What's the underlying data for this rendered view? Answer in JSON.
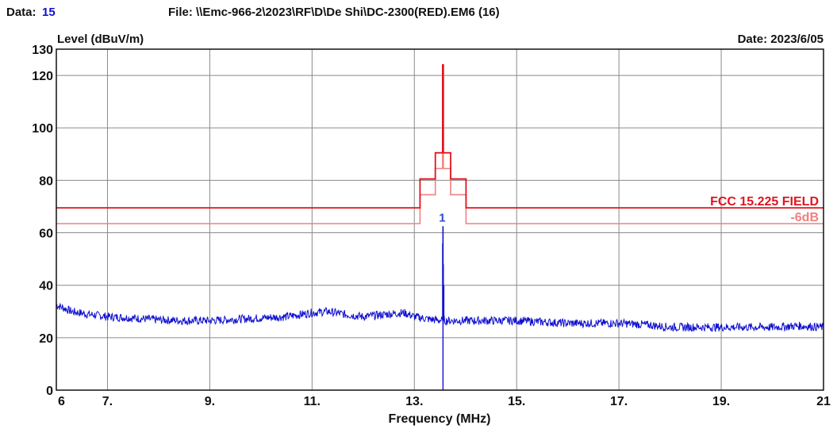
{
  "header": {
    "data_label": "Data:",
    "data_value": "15",
    "file_text": "File: \\\\Emc-966-2\\2023\\RF\\D\\De Shi\\DC-2300(RED).EM6  (16)",
    "date_text": "Date: 2023/6/05"
  },
  "colors": {
    "limit": "#e0141e",
    "limit_margin": "#f08080",
    "trace": "#1010d0",
    "marker_text": "#2a4fd0",
    "data_value": "#1010d0",
    "grid": "#8a8a8a"
  },
  "chart_data": {
    "type": "line",
    "ylabel": "Level (dBuV/m)",
    "xlabel": "Frequency (MHz)",
    "xlim": [
      6,
      21
    ],
    "ylim": [
      0,
      130
    ],
    "x_ticks": [
      {
        "v": 6,
        "label": "6"
      },
      {
        "v": 7,
        "label": "7."
      },
      {
        "v": 9,
        "label": "9."
      },
      {
        "v": 11,
        "label": "11."
      },
      {
        "v": 13,
        "label": "13."
      },
      {
        "v": 15,
        "label": "15."
      },
      {
        "v": 17,
        "label": "17."
      },
      {
        "v": 19,
        "label": "19."
      },
      {
        "v": 21,
        "label": "21"
      }
    ],
    "y_ticks": [
      {
        "v": 0,
        "label": "0"
      },
      {
        "v": 20,
        "label": "20"
      },
      {
        "v": 40,
        "label": "40"
      },
      {
        "v": 60,
        "label": "60"
      },
      {
        "v": 80,
        "label": "80"
      },
      {
        "v": 100,
        "label": "100"
      },
      {
        "v": 120,
        "label": "120"
      },
      {
        "v": 130,
        "label": "130"
      }
    ],
    "grid": true,
    "series": [
      {
        "name": "FCC 15.225 FIELD",
        "color": "#e0141e",
        "points": [
          [
            6,
            69.5
          ],
          [
            13.11,
            69.5
          ],
          [
            13.11,
            80.5
          ],
          [
            13.41,
            80.5
          ],
          [
            13.41,
            90.5
          ],
          [
            13.553,
            90.5
          ],
          [
            13.553,
            124
          ],
          [
            13.567,
            124
          ],
          [
            13.567,
            90.5
          ],
          [
            13.71,
            90.5
          ],
          [
            13.71,
            80.5
          ],
          [
            14.01,
            80.5
          ],
          [
            14.01,
            69.5
          ],
          [
            21,
            69.5
          ]
        ]
      },
      {
        "name": "-6dB",
        "color": "#f08080",
        "points": [
          [
            6,
            63.5
          ],
          [
            13.11,
            63.5
          ],
          [
            13.11,
            74.5
          ],
          [
            13.41,
            74.5
          ],
          [
            13.41,
            84.5
          ],
          [
            13.553,
            84.5
          ],
          [
            13.553,
            118
          ],
          [
            13.567,
            118
          ],
          [
            13.567,
            84.5
          ],
          [
            13.71,
            84.5
          ],
          [
            13.71,
            74.5
          ],
          [
            14.01,
            74.5
          ],
          [
            14.01,
            63.5
          ],
          [
            21,
            63.5
          ]
        ]
      },
      {
        "color": "#1010d0",
        "noise": 1.6,
        "points": [
          [
            6.0,
            32.5
          ],
          [
            6.3,
            30
          ],
          [
            6.6,
            29
          ],
          [
            7.0,
            28
          ],
          [
            7.5,
            27.5
          ],
          [
            8.0,
            26.8
          ],
          [
            8.5,
            26.5
          ],
          [
            9.0,
            26.5
          ],
          [
            9.5,
            27
          ],
          [
            10.0,
            27.5
          ],
          [
            10.5,
            28
          ],
          [
            11.0,
            29.5
          ],
          [
            11.3,
            30
          ],
          [
            11.6,
            29
          ],
          [
            12.0,
            28
          ],
          [
            12.5,
            29
          ],
          [
            12.8,
            29.5
          ],
          [
            13.0,
            28
          ],
          [
            13.3,
            27
          ],
          [
            13.55,
            26.5
          ],
          [
            14.0,
            26.5
          ],
          [
            14.5,
            26.5
          ],
          [
            15.0,
            26.5
          ],
          [
            15.5,
            26
          ],
          [
            16.0,
            25.5
          ],
          [
            16.5,
            25.5
          ],
          [
            17.0,
            25.5
          ],
          [
            17.5,
            25
          ],
          [
            18.0,
            24
          ],
          [
            18.5,
            24
          ],
          [
            19.0,
            24
          ],
          [
            19.5,
            24
          ],
          [
            20.0,
            24
          ],
          [
            20.5,
            24.5
          ],
          [
            21.0,
            24
          ]
        ]
      },
      {
        "color": "#1010d0",
        "spikes": [
          [
            13.56,
            62.5
          ],
          [
            13.555,
            56
          ],
          [
            13.565,
            48
          ],
          [
            13.575,
            40
          ]
        ],
        "dip": [
          13.56,
          0
        ]
      }
    ],
    "limit_labels": [
      {
        "text": "FCC 15.225 FIELD",
        "y": 69.5
      },
      {
        "text": "-6dB",
        "y": 63.5
      }
    ],
    "markers": [
      {
        "label": "1",
        "x": 13.56,
        "y": 62.5
      }
    ]
  }
}
